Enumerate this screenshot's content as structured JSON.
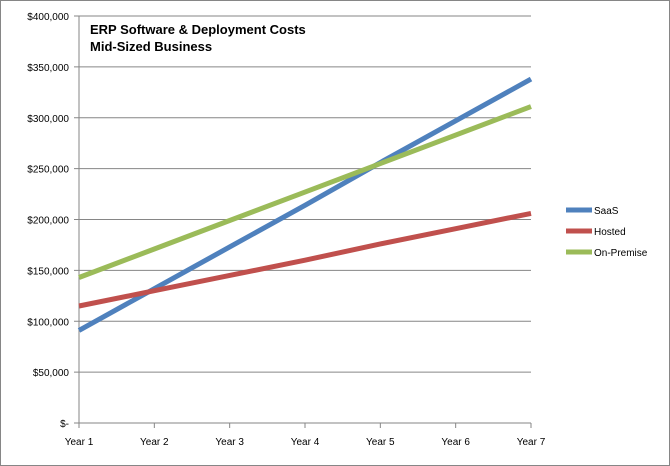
{
  "chart_data": {
    "type": "line",
    "title": "ERP Software & Deployment Costs",
    "subtitle": "Mid-Sized Business",
    "categories": [
      "Year 1",
      "Year 2",
      "Year 3",
      "Year 4",
      "Year 5",
      "Year 6",
      "Year 7"
    ],
    "y_ticks": [
      "$-",
      "$50,000",
      "$100,000",
      "$150,000",
      "$200,000",
      "$250,000",
      "$300,000",
      "$350,000",
      "$400,000"
    ],
    "ylim": [
      0,
      400000
    ],
    "grid": true,
    "legend": "right",
    "series": [
      {
        "name": "SaaS",
        "color": "#4F81BD",
        "values": [
          91000,
          132000,
          173000,
          214000,
          256000,
          297000,
          338000
        ]
      },
      {
        "name": "Hosted",
        "color": "#C0504D",
        "values": [
          115000,
          130000,
          145000,
          160000,
          176000,
          191000,
          206000
        ]
      },
      {
        "name": "On-Premise",
        "color": "#9BBB59",
        "values": [
          143000,
          171000,
          199000,
          227000,
          255000,
          283000,
          311000
        ]
      }
    ]
  }
}
